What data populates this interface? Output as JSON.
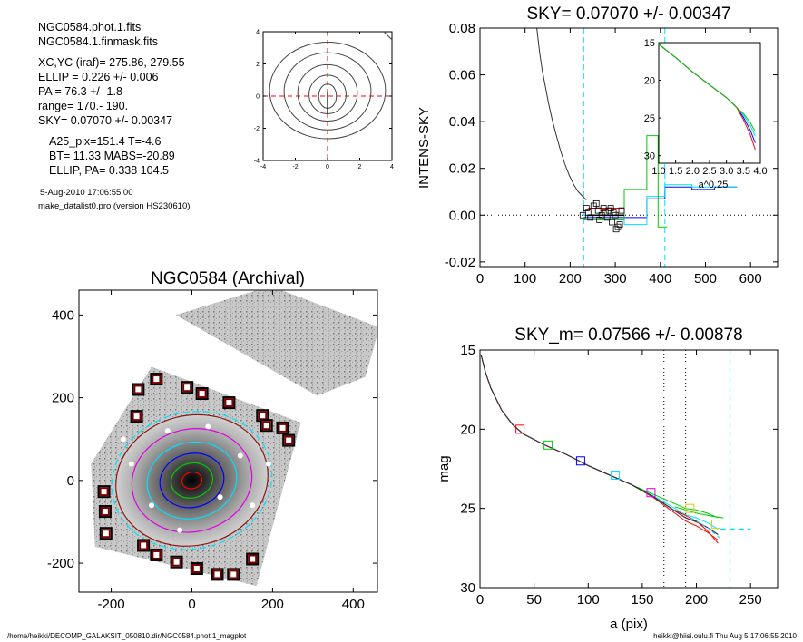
{
  "info": {
    "file1": "NGC0584.phot.1.fits",
    "file2": "NGC0584.1.finmask.fits",
    "xcyc": "XC,YC (iraf)=   275.86, 279.55",
    "ellip": "ELLIP = 0.226 +/- 0.006",
    "pa": "PA    = 76.3 +/-   1.8",
    "range": "range=  170.-  190.",
    "sky": "SKY= 0.07070 +/- 0.00347",
    "a25": "A25_pix=151.4   T=-4.6",
    "bt": "BT=  11.33   MABS=-20.89",
    "ellip_pa": "ELLIP, PA= 0.338  104.5",
    "date": "5-Aug-2010 17:06:55.00",
    "program": "make_datalist0.pro (version HS230610)"
  },
  "footer": {
    "left": "/home/heikki/DECOMP_GALAKSIT_050810.dir/NGC0584.phot.1_magplot",
    "right": "heikki@hiisi.oulu.fi  Thu Aug  5 17:06:55 2010"
  },
  "colors": {
    "cyan": "#00e0ff",
    "red": "#ff0000",
    "green": "#00cc00",
    "blue": "#0000ff",
    "yellow": "#d8d000",
    "magenta": "#e000e0",
    "brown": "#8b1a1a",
    "darkred_box": "#7a0000"
  },
  "chart_data": [
    {
      "id": "contour",
      "type": "contour",
      "title": "",
      "xlim": [
        -4,
        4
      ],
      "ylim": [
        -4,
        4
      ],
      "xticks": [
        "-4",
        "-2",
        "0",
        "2",
        "4"
      ],
      "yticks": [
        "-4",
        "-2",
        "0",
        "2",
        "4"
      ],
      "levels": [
        {
          "rx": 3.6,
          "ry": 3.0,
          "cy": 0.35
        },
        {
          "rx": 2.7,
          "ry": 2.4,
          "cy": 0.3
        },
        {
          "rx": 1.85,
          "ry": 1.75,
          "cy": 0.2
        },
        {
          "rx": 1.15,
          "ry": 1.2,
          "cy": 0.1
        },
        {
          "rx": 0.55,
          "ry": 0.75,
          "cy": 0.0
        }
      ]
    },
    {
      "id": "sky",
      "type": "line",
      "title": "SKY= 0.07070 +/- 0.00347",
      "xlabel": "",
      "ylabel": "INTENS-SKY",
      "xlim": [
        0,
        660
      ],
      "ylim": [
        -0.022,
        0.08
      ],
      "xticks": [
        "0",
        "100",
        "200",
        "300",
        "400",
        "500",
        "600"
      ],
      "yticks": [
        "-0.02",
        "0.00",
        "0.02",
        "0.04",
        "0.06",
        "0.08"
      ],
      "profile": [
        [
          126,
          0.08
        ],
        [
          132,
          0.07
        ],
        [
          138,
          0.062
        ],
        [
          145,
          0.055
        ],
        [
          152,
          0.048
        ],
        [
          160,
          0.041
        ],
        [
          168,
          0.035
        ],
        [
          178,
          0.028
        ],
        [
          188,
          0.022
        ],
        [
          198,
          0.017
        ],
        [
          208,
          0.013
        ],
        [
          218,
          0.01
        ],
        [
          228,
          0.008
        ],
        [
          236,
          0.0065
        ]
      ],
      "square_points": [
        [
          228,
          0.0
        ],
        [
          236,
          0.003
        ],
        [
          240,
          0.001
        ],
        [
          245,
          -0.001
        ],
        [
          252,
          0.004
        ],
        [
          258,
          0.005
        ],
        [
          262,
          0.002
        ],
        [
          265,
          -0.002
        ],
        [
          270,
          0.0
        ],
        [
          274,
          0.003
        ],
        [
          278,
          0.001
        ],
        [
          282,
          -0.001
        ],
        [
          286,
          0.002
        ],
        [
          290,
          0.003
        ],
        [
          293,
          -0.003
        ],
        [
          296,
          0.001
        ],
        [
          300,
          0.0
        ],
        [
          302,
          -0.006
        ],
        [
          306,
          -0.005
        ],
        [
          310,
          -0.004
        ],
        [
          314,
          0.002
        ]
      ],
      "steps": {
        "blue": [
          [
            230,
            -0.001
          ],
          [
            310,
            -0.001
          ],
          [
            310,
            -0.001
          ],
          [
            370,
            -0.001
          ],
          [
            370,
            0.007
          ],
          [
            410,
            0.007
          ],
          [
            410,
            0.012
          ],
          [
            470,
            0.012
          ],
          [
            470,
            0.011
          ],
          [
            520,
            0.011
          ],
          [
            520,
            0.012
          ],
          [
            570,
            0.012
          ]
        ],
        "cyan": [
          [
            230,
            0.0
          ],
          [
            320,
            0.0
          ],
          [
            320,
            -0.004
          ],
          [
            370,
            -0.004
          ],
          [
            370,
            0.008
          ],
          [
            410,
            0.008
          ],
          [
            410,
            0.013
          ],
          [
            470,
            0.013
          ],
          [
            470,
            0.012
          ],
          [
            570,
            0.012
          ]
        ],
        "green": [
          [
            230,
            -0.002
          ],
          [
            320,
            -0.002
          ],
          [
            320,
            0.011
          ],
          [
            370,
            0.011
          ],
          [
            370,
            0.034
          ],
          [
            395,
            0.034
          ],
          [
            395,
            -0.005
          ],
          [
            415,
            -0.005
          ]
        ],
        "red": [
          [
            240,
            0.003
          ],
          [
            320,
            0.003
          ]
        ],
        "black": [
          [
            240,
            0.0
          ],
          [
            320,
            0.0
          ]
        ]
      },
      "vlines": [
        230,
        410
      ],
      "inset": {
        "xlim": [
          1.0,
          4.0
        ],
        "ylim": [
          15,
          31
        ],
        "xlabel": "a^0.25",
        "xticks": [
          "1.0",
          "1.5",
          "2.0",
          "2.5",
          "3.0",
          "3.5",
          "4.0"
        ],
        "yticks": [
          "15",
          "20",
          "25",
          "30"
        ],
        "curve": [
          [
            1.0,
            15.2
          ],
          [
            1.5,
            17.0
          ],
          [
            2.0,
            18.9
          ],
          [
            2.5,
            20.6
          ],
          [
            3.0,
            22.3
          ],
          [
            3.3,
            23.6
          ],
          [
            3.5,
            24.6
          ],
          [
            3.7,
            26.0
          ],
          [
            3.85,
            27.4
          ]
        ]
      }
    },
    {
      "id": "image",
      "type": "image",
      "title": "NGC0584 (Archival)",
      "xlim": [
        -280,
        460
      ],
      "ylim": [
        -270,
        460
      ],
      "xticks": [
        "-200",
        "0",
        "200",
        "400"
      ],
      "yticks": [
        "-200",
        "0",
        "200",
        "400"
      ],
      "ellipses": [
        {
          "a": 200,
          "b": 165,
          "color": "cyan",
          "dash": true
        },
        {
          "a": 190,
          "b": 157,
          "color": "brown"
        },
        {
          "a": 150,
          "b": 124,
          "color": "magenta"
        },
        {
          "a": 112,
          "b": 92,
          "color": "cyan"
        },
        {
          "a": 80,
          "b": 65,
          "color": "blue"
        },
        {
          "a": 52,
          "b": 42,
          "color": "green"
        },
        {
          "a": 25,
          "b": 20,
          "color": "red"
        }
      ],
      "mask_boxes": [
        [
          -88,
          245
        ],
        [
          -12,
          225
        ],
        [
          25,
          210
        ],
        [
          -133,
          220
        ],
        [
          -137,
          155
        ],
        [
          92,
          188
        ],
        [
          175,
          157
        ],
        [
          185,
          133
        ],
        [
          225,
          127
        ],
        [
          240,
          97
        ],
        [
          -218,
          -27
        ],
        [
          -215,
          -75
        ],
        [
          -213,
          -128
        ],
        [
          -120,
          -157
        ],
        [
          -88,
          -180
        ],
        [
          -38,
          -197
        ],
        [
          12,
          -213
        ],
        [
          63,
          -227
        ],
        [
          103,
          -227
        ],
        [
          150,
          -190
        ]
      ]
    },
    {
      "id": "mag",
      "type": "line",
      "title": "SKY_m=  0.07566 +/- 0.00878",
      "xlabel": "a (pix)",
      "ylabel": "mag",
      "xlim": [
        0,
        275
      ],
      "ylim": [
        30,
        15
      ],
      "xticks": [
        "0",
        "50",
        "100",
        "150",
        "200",
        "250"
      ],
      "yticks": [
        "15",
        "20",
        "25",
        "30"
      ],
      "curve": [
        [
          1,
          15.3
        ],
        [
          5,
          16.4
        ],
        [
          10,
          17.4
        ],
        [
          20,
          18.8
        ],
        [
          30,
          19.7
        ],
        [
          40,
          20.3
        ],
        [
          60,
          21.0
        ],
        [
          80,
          21.6
        ],
        [
          100,
          22.3
        ],
        [
          120,
          22.9
        ],
        [
          140,
          23.5
        ],
        [
          160,
          24.2
        ],
        [
          170,
          24.6
        ],
        [
          180,
          25.0
        ],
        [
          190,
          25.4
        ],
        [
          200,
          25.6
        ],
        [
          210,
          25.9
        ],
        [
          220,
          26.3
        ]
      ],
      "branches": {
        "red": [
          [
            180,
            25.1
          ],
          [
            200,
            25.8
          ],
          [
            210,
            26.4
          ],
          [
            220,
            27.2
          ]
        ],
        "green": [
          [
            180,
            24.9
          ],
          [
            200,
            25.3
          ],
          [
            215,
            25.5
          ],
          [
            225,
            25.6
          ]
        ],
        "cyan": [
          [
            195,
            25.6
          ],
          [
            210,
            26.2
          ],
          [
            222,
            26.9
          ]
        ]
      },
      "markers": [
        {
          "x": 37,
          "y": 20.0,
          "color": "red"
        },
        {
          "x": 63,
          "y": 21.0,
          "color": "green"
        },
        {
          "x": 93,
          "y": 22.0,
          "color": "blue"
        },
        {
          "x": 125,
          "y": 22.9,
          "color": "cyan"
        },
        {
          "x": 158,
          "y": 24.0,
          "color": "magenta"
        },
        {
          "x": 194,
          "y": 25.0,
          "color": "yellow"
        },
        {
          "x": 218,
          "y": 26.0,
          "color": "yellow"
        }
      ],
      "dotted_vlines": [
        170,
        190
      ],
      "dashed_vline": 231,
      "dashed_hline": {
        "x1": 222,
        "x2": 250,
        "y": 26.3
      }
    }
  ]
}
